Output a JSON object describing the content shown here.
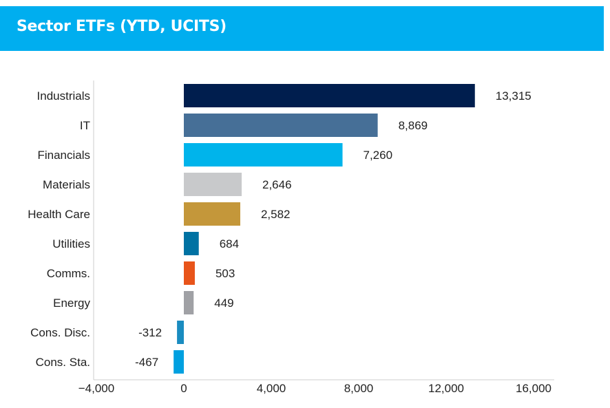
{
  "header": {
    "title": "Sector ETFs (YTD, UCITS)",
    "color": "#00AEEF"
  },
  "chart_data": {
    "type": "bar",
    "orientation": "horizontal",
    "title": "Sector ETFs (YTD, UCITS)",
    "categories": [
      "Industrials",
      "IT",
      "Financials",
      "Materials",
      "Health Care",
      "Utilities",
      "Comms.",
      "Energy",
      "Cons. Disc.",
      "Cons. Sta."
    ],
    "values": [
      13315,
      8869,
      7260,
      2646,
      2582,
      684,
      503,
      449,
      -312,
      -467
    ],
    "value_labels": [
      "13,315",
      "8,869",
      "7,260",
      "2,646",
      "2,582",
      "684",
      "503",
      "449",
      "-312",
      "-467"
    ],
    "colors": [
      "#001E4E",
      "#466F97",
      "#00B4EB",
      "#C8C9CB",
      "#C4973A",
      "#0072A3",
      "#E8541A",
      "#A0A1A5",
      "#1A8CC0",
      "#00A0E0"
    ],
    "xlim": [
      -4000,
      16000
    ],
    "xticks": [
      -4000,
      0,
      4000,
      8000,
      12000,
      16000
    ],
    "xtick_labels": [
      "−4,000",
      "0",
      "4,000",
      "8,000",
      "12,000",
      "16,000"
    ],
    "xlabel": "",
    "ylabel": "",
    "grid": false,
    "legend": "none"
  }
}
